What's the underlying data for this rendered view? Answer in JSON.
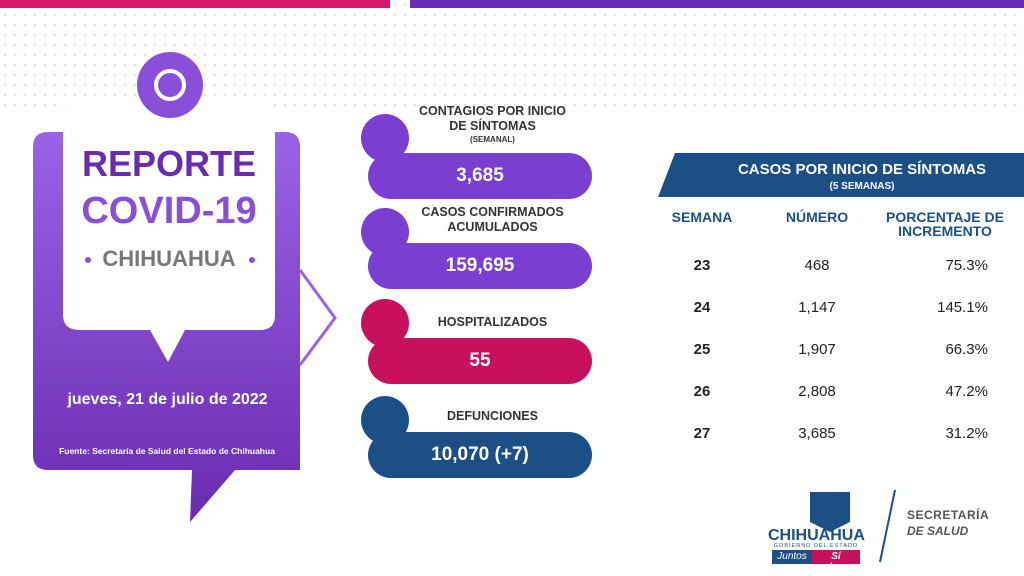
{
  "header": {
    "title": "REPORTE",
    "subtitle": "COVID-19",
    "region": "CHIHUAHUA",
    "date": "jueves, 21 de julio de 2022",
    "source": "Fuente: Secretaría de Salud del Estado de Chihuahua"
  },
  "stats": [
    {
      "label": "CONTAGIOS POR INICIO DE SÍNTOMAS",
      "note": "(SEMANAL)",
      "value": "3,685"
    },
    {
      "label": "CASOS CONFIRMADOS ACUMULADOS",
      "value": "159,695"
    },
    {
      "label": "HOSPITALIZADOS",
      "value": "55"
    },
    {
      "label": "DEFUNCIONES",
      "value": "10,070 (+7)"
    }
  ],
  "table": {
    "title": "CASOS POR INICIO DE SÍNTOMAS",
    "subtitle": "(5 SEMANAS)",
    "columns": [
      "SEMANA",
      "NÚMERO",
      "PORCENTAJE DE INCREMENTO"
    ],
    "rows": [
      [
        "23",
        "468",
        "75.3%"
      ],
      [
        "24",
        "1,147",
        "145.1%"
      ],
      [
        "25",
        "1,907",
        "66.3%"
      ],
      [
        "26",
        "2,808",
        "47.2%"
      ],
      [
        "27",
        "3,685",
        "31.2%"
      ]
    ]
  },
  "footer": {
    "state": "CHIHUAHUA",
    "government": "GOBIERNO DEL ESTADO",
    "slogan_1": "Juntos",
    "slogan_2": "Sí podemos",
    "agency_1": "SECRETARÍA",
    "agency_2": "DE SALUD"
  }
}
